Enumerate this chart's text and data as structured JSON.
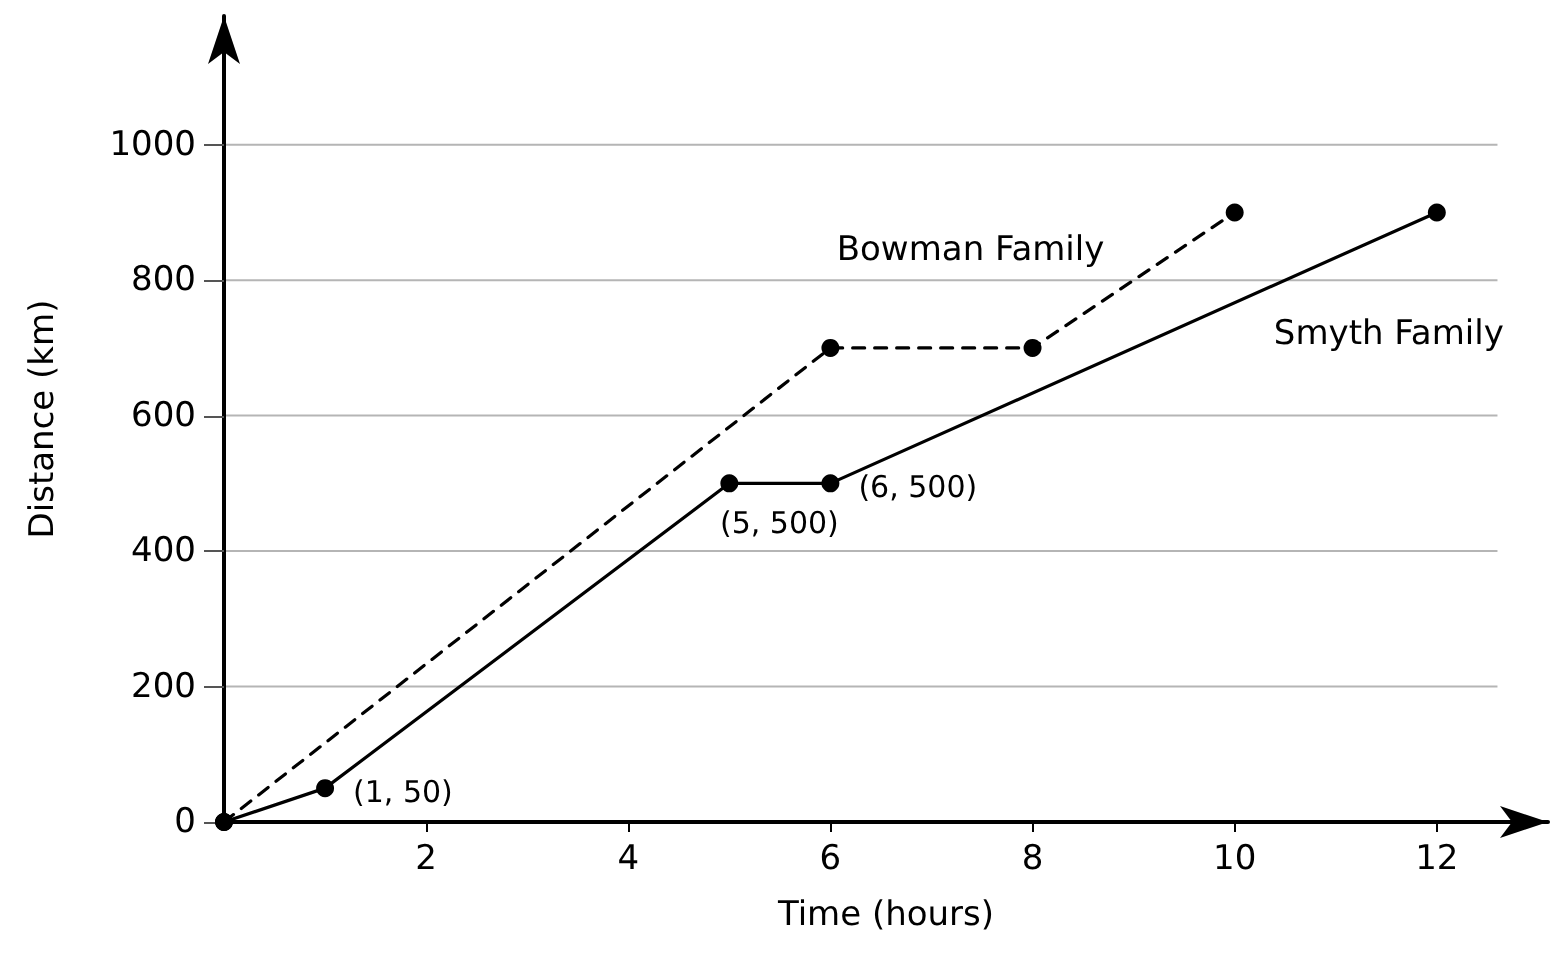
{
  "chart_data": {
    "type": "line",
    "xlabel": "Time (hours)",
    "ylabel": "Distance (km)",
    "xlim": [
      0,
      13.1
    ],
    "ylim": [
      0,
      1190
    ],
    "xticks": [
      2,
      4,
      6,
      8,
      10,
      12
    ],
    "yticks": [
      0,
      200,
      400,
      600,
      800,
      1000
    ],
    "grid": "y",
    "legend": false,
    "marker": "circle",
    "series": [
      {
        "name": "Bowman Family",
        "color": "#000000",
        "line_style": "dashed",
        "x": [
          0,
          6,
          8,
          10
        ],
        "values": [
          0,
          700,
          700,
          900
        ]
      },
      {
        "name": "Smyth Family",
        "color": "#000000",
        "line_style": "solid",
        "x": [
          0,
          1,
          5,
          6,
          12
        ],
        "values": [
          0,
          50,
          500,
          500,
          900
        ]
      }
    ],
    "annotations": [
      {
        "text": "(1, 50)",
        "x": 1,
        "y": 50
      },
      {
        "text": "(5, 500)",
        "x": 5,
        "y": 500
      },
      {
        "text": "(6, 500)",
        "x": 6,
        "y": 500
      }
    ]
  }
}
